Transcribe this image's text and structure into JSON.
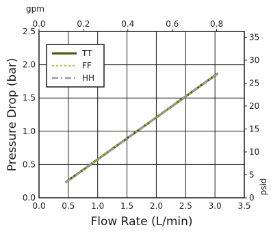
{
  "chart_data": {
    "type": "line",
    "title": "",
    "xlabel": "Flow Rate (L/min)",
    "ylabel": "Pressure Drop (bar)",
    "x2label": "gpm",
    "y2label": "psid",
    "xlim": [
      0,
      3.5
    ],
    "ylim": [
      0,
      2.5
    ],
    "x2lim": [
      0,
      0.9246
    ],
    "y2lim": [
      0,
      36.26
    ],
    "xticks": [
      "0.0",
      "0.5",
      "1.0",
      "1.5",
      "2.0",
      "2.5",
      "3.0",
      "3.5"
    ],
    "yticks": [
      "0.0",
      "0.5",
      "1.0",
      "1.5",
      "2.0",
      "2.5"
    ],
    "x2ticks": [
      "0.0",
      "0.2",
      "0.4",
      "0.6",
      "0.8"
    ],
    "y2ticks": [
      "0",
      "5",
      "10",
      "15",
      "20",
      "25",
      "30",
      "35"
    ],
    "grid": true,
    "legend": "top-left",
    "series": [
      {
        "name": "TT",
        "style": "solid",
        "color": "#4a5e12",
        "x": [
          0.45,
          3.05
        ],
        "y": [
          0.23,
          1.87
        ]
      },
      {
        "name": "FF",
        "style": "dotted",
        "color": "#a8c23a",
        "x": [
          0.45,
          3.05
        ],
        "y": [
          0.23,
          1.87
        ]
      },
      {
        "name": "HH",
        "style": "dashdot",
        "color": "#9a9a9a",
        "x": [
          0.45,
          3.05
        ],
        "y": [
          0.23,
          1.87
        ]
      }
    ]
  }
}
